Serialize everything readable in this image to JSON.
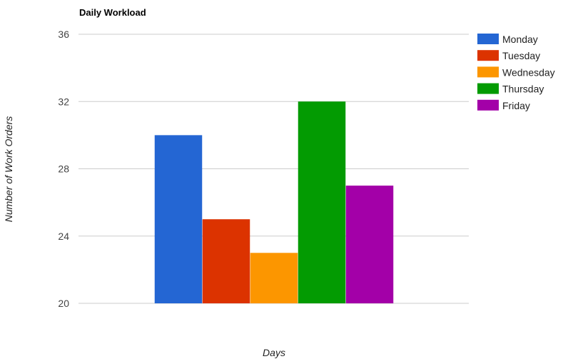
{
  "chart_data": {
    "type": "bar",
    "title": "Daily Workload",
    "xlabel": "Days",
    "ylabel": "Number of Work Orders",
    "ylim": [
      20,
      36
    ],
    "yticks": [
      20,
      24,
      28,
      32,
      36
    ],
    "grid": true,
    "legend_position": "right",
    "categories": [
      ""
    ],
    "series": [
      {
        "name": "Monday",
        "values": [
          30
        ],
        "color": "#2466d3"
      },
      {
        "name": "Tuesday",
        "values": [
          25
        ],
        "color": "#dc3300"
      },
      {
        "name": "Wednesday",
        "values": [
          23
        ],
        "color": "#fc9600"
      },
      {
        "name": "Thursday",
        "values": [
          32
        ],
        "color": "#039b02"
      },
      {
        "name": "Friday",
        "values": [
          27
        ],
        "color": "#a300a8"
      }
    ]
  }
}
